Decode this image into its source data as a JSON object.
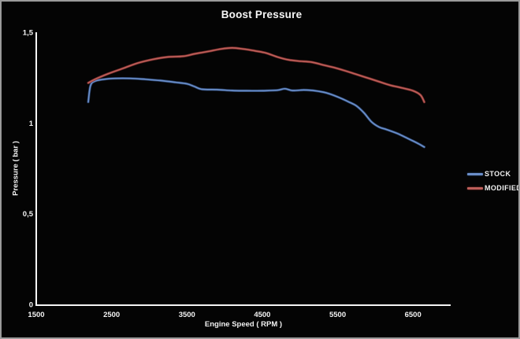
{
  "title": "Boost Pressure",
  "colors": {
    "background": "#040404",
    "frame_border": "#9b9b9b",
    "axis": "#f5f5f5",
    "text": "#f2f2f2"
  },
  "chart_data": {
    "type": "line",
    "title": "Boost Pressure",
    "xlabel": "Engine Speed ( RPM )",
    "ylabel": "Pressure ( bar )",
    "xlim": [
      1500,
      7000
    ],
    "ylim": [
      0,
      1.5
    ],
    "x_ticks": [
      1500,
      2500,
      3500,
      4500,
      5500,
      6500
    ],
    "x_tick_labels": [
      "1500",
      "2500",
      "3500",
      "4500",
      "5500",
      "6500"
    ],
    "y_ticks": [
      0,
      0.5,
      1,
      1.5
    ],
    "y_tick_labels": [
      "0",
      "0,5",
      "1",
      "1,5"
    ],
    "grid": false,
    "legend_position": "right",
    "series": [
      {
        "name": "STOCK",
        "color": "#6a8ec9",
        "halo": "#2c4773",
        "points": [
          [
            2190,
            1.12
          ],
          [
            2220,
            1.21
          ],
          [
            2280,
            1.235
          ],
          [
            2400,
            1.245
          ],
          [
            2550,
            1.25
          ],
          [
            2750,
            1.25
          ],
          [
            2950,
            1.245
          ],
          [
            3150,
            1.238
          ],
          [
            3350,
            1.228
          ],
          [
            3500,
            1.22
          ],
          [
            3600,
            1.205
          ],
          [
            3700,
            1.19
          ],
          [
            3900,
            1.188
          ],
          [
            4100,
            1.183
          ],
          [
            4300,
            1.182
          ],
          [
            4500,
            1.182
          ],
          [
            4700,
            1.185
          ],
          [
            4800,
            1.193
          ],
          [
            4900,
            1.183
          ],
          [
            5050,
            1.186
          ],
          [
            5200,
            1.182
          ],
          [
            5350,
            1.17
          ],
          [
            5500,
            1.148
          ],
          [
            5650,
            1.12
          ],
          [
            5750,
            1.098
          ],
          [
            5850,
            1.06
          ],
          [
            5950,
            1.01
          ],
          [
            6050,
            0.982
          ],
          [
            6150,
            0.968
          ],
          [
            6300,
            0.945
          ],
          [
            6450,
            0.915
          ],
          [
            6550,
            0.895
          ],
          [
            6650,
            0.872
          ]
        ]
      },
      {
        "name": "MODIFIED",
        "color": "#bd5e59",
        "halo": "#7a2f2c",
        "points": [
          [
            2190,
            1.225
          ],
          [
            2280,
            1.245
          ],
          [
            2450,
            1.275
          ],
          [
            2650,
            1.305
          ],
          [
            2850,
            1.335
          ],
          [
            3050,
            1.355
          ],
          [
            3250,
            1.368
          ],
          [
            3450,
            1.372
          ],
          [
            3600,
            1.385
          ],
          [
            3800,
            1.4
          ],
          [
            3950,
            1.412
          ],
          [
            4100,
            1.418
          ],
          [
            4250,
            1.412
          ],
          [
            4400,
            1.402
          ],
          [
            4550,
            1.39
          ],
          [
            4700,
            1.368
          ],
          [
            4850,
            1.352
          ],
          [
            5000,
            1.345
          ],
          [
            5150,
            1.34
          ],
          [
            5300,
            1.325
          ],
          [
            5450,
            1.31
          ],
          [
            5600,
            1.292
          ],
          [
            5750,
            1.272
          ],
          [
            5900,
            1.252
          ],
          [
            6050,
            1.232
          ],
          [
            6200,
            1.212
          ],
          [
            6350,
            1.198
          ],
          [
            6500,
            1.182
          ],
          [
            6600,
            1.158
          ],
          [
            6650,
            1.12
          ]
        ]
      }
    ]
  }
}
